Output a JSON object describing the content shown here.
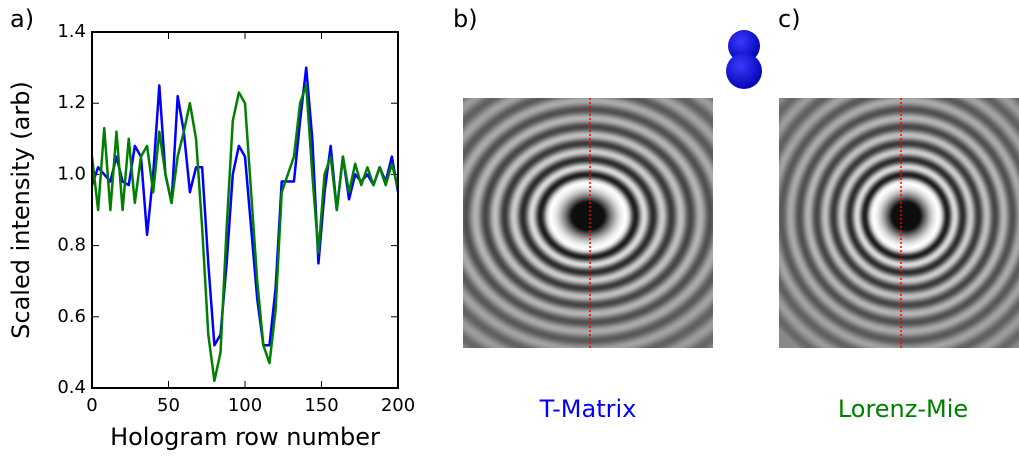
{
  "chart_data": {
    "type": "line",
    "x_label": "Hologram row number",
    "y_label": "Scaled intensity (arb)",
    "x": [
      0,
      4,
      8,
      12,
      16,
      20,
      24,
      28,
      32,
      36,
      40,
      44,
      48,
      52,
      56,
      60,
      64,
      68,
      72,
      76,
      80,
      84,
      88,
      92,
      96,
      100,
      104,
      108,
      112,
      116,
      120,
      124,
      128,
      132,
      136,
      140,
      144,
      148,
      152,
      156,
      160,
      164,
      168,
      172,
      176,
      180,
      184,
      188,
      192,
      196,
      200
    ],
    "series": [
      {
        "name": "T-Matrix",
        "color": "#0000ff",
        "values": [
          0.97,
          1.02,
          1.0,
          0.98,
          1.05,
          0.98,
          0.97,
          1.08,
          1.05,
          0.83,
          1.0,
          1.25,
          1.0,
          0.92,
          1.22,
          1.12,
          0.95,
          1.02,
          1.02,
          0.75,
          0.52,
          0.55,
          0.75,
          1.0,
          1.08,
          1.05,
          0.85,
          0.65,
          0.52,
          0.52,
          0.68,
          0.98,
          0.98,
          0.98,
          1.15,
          1.3,
          1.1,
          0.75,
          0.95,
          1.08,
          0.9,
          1.05,
          0.93,
          1.0,
          0.98,
          1.0,
          0.97,
          1.02,
          0.98,
          1.05,
          0.95
        ]
      },
      {
        "name": "Lorenz-Mie",
        "color": "#008000",
        "values": [
          1.05,
          0.9,
          1.13,
          0.9,
          1.12,
          0.9,
          1.1,
          0.92,
          1.05,
          1.08,
          0.95,
          1.12,
          1.0,
          0.92,
          1.05,
          1.12,
          1.2,
          1.1,
          0.85,
          0.55,
          0.42,
          0.5,
          0.85,
          1.15,
          1.23,
          1.2,
          0.95,
          0.7,
          0.52,
          0.47,
          0.62,
          0.95,
          1.0,
          1.05,
          1.2,
          1.25,
          1.0,
          0.78,
          1.0,
          1.05,
          0.9,
          1.05,
          0.95,
          1.03,
          0.97,
          1.02,
          0.97,
          1.02,
          0.97,
          1.03,
          0.96
        ]
      }
    ],
    "xlim": [
      0,
      200
    ],
    "xticks": [
      0,
      50,
      100,
      150,
      200
    ],
    "ylim": [
      0.4,
      1.4
    ],
    "yticks": [
      0.4,
      0.6,
      0.8,
      {
        "value": 1,
        "label": "1.0"
      },
      1.2,
      1.4
    ],
    "grid": false
  },
  "panel_labels": [
    "a)",
    "b)",
    "c)"
  ]
}
